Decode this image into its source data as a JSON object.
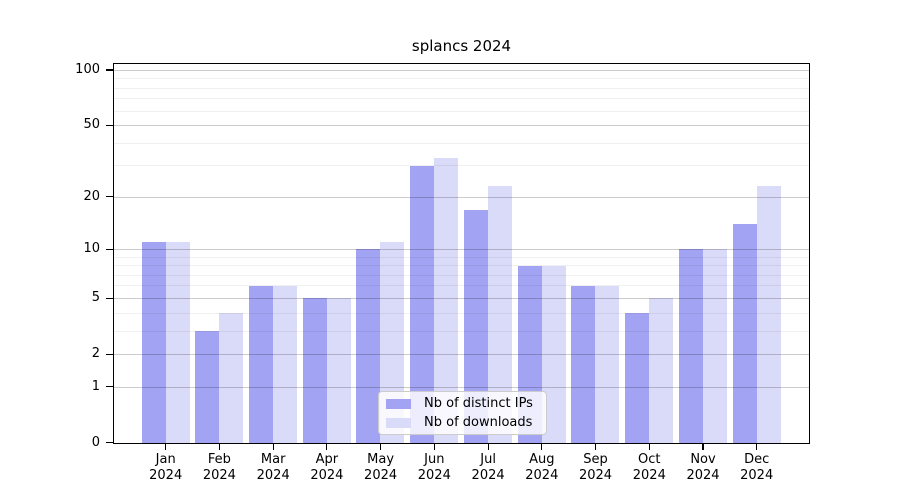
{
  "title": "splancs 2024",
  "colors": {
    "ips_bar": "#a3a3f3",
    "downloads_bar": "#dadaf9",
    "axis": "#000000",
    "legend_border": "#cccccc"
  },
  "legend": {
    "items": [
      {
        "label": "Nb of distinct IPs"
      },
      {
        "label": "Nb of downloads"
      }
    ]
  },
  "chart_data": {
    "type": "bar",
    "title": "splancs 2024",
    "categories": [
      "Jan",
      "Feb",
      "Mar",
      "Apr",
      "May",
      "Jun",
      "Jul",
      "Aug",
      "Sep",
      "Oct",
      "Nov",
      "Dec"
    ],
    "year_label": "2024",
    "series": [
      {
        "name": "Nb of distinct IPs",
        "color": "#a3a3f3",
        "values": [
          11,
          3,
          6,
          5,
          10,
          30,
          17,
          8,
          6,
          4,
          10,
          14
        ]
      },
      {
        "name": "Nb of downloads",
        "color": "#dadaf9",
        "values": [
          11,
          4,
          6,
          5,
          11,
          33,
          23,
          8,
          6,
          5,
          10,
          23
        ]
      }
    ],
    "yscale": "log1p",
    "ylim": [
      0,
      100
    ],
    "yticks": [
      0,
      1,
      2,
      5,
      10,
      20,
      50,
      100
    ],
    "minor_gridlines": [
      3,
      4,
      6,
      7,
      8,
      9,
      30,
      40,
      60,
      70,
      80,
      90
    ],
    "grid": true,
    "legend_position": "bottom-center",
    "xlabel": "",
    "ylabel": ""
  }
}
